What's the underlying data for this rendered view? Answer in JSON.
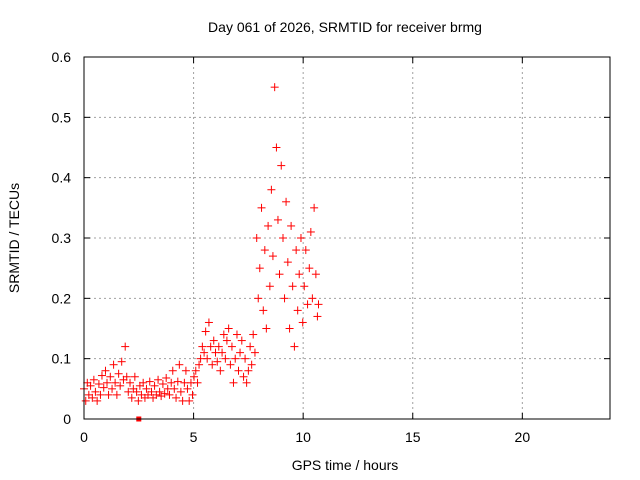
{
  "chart_data": {
    "type": "scatter",
    "title": "Day 061 of 2026, SRMTID for receiver brmg",
    "xlabel": "GPS time / hours",
    "ylabel": "SRMTID / TECUs",
    "xlim": [
      0,
      24
    ],
    "ylim": [
      0,
      0.6
    ],
    "xticks": [
      0,
      5,
      10,
      15,
      20
    ],
    "yticks": [
      0,
      0.1,
      0.2,
      0.3,
      0.4,
      0.5,
      0.6
    ],
    "grid": true,
    "marker": "+",
    "series_color": "#ff0000",
    "x_outlier_marker": {
      "x": 2.5,
      "y": 0
    },
    "points": [
      [
        0.0,
        0.05
      ],
      [
        0.08,
        0.03
      ],
      [
        0.15,
        0.06
      ],
      [
        0.22,
        0.04
      ],
      [
        0.3,
        0.055
      ],
      [
        0.38,
        0.035
      ],
      [
        0.45,
        0.065
      ],
      [
        0.52,
        0.045
      ],
      [
        0.6,
        0.03
      ],
      [
        0.68,
        0.058
      ],
      [
        0.75,
        0.04
      ],
      [
        0.82,
        0.072
      ],
      [
        0.9,
        0.052
      ],
      [
        0.98,
        0.08
      ],
      [
        1.05,
        0.06
      ],
      [
        1.12,
        0.04
      ],
      [
        1.2,
        0.07
      ],
      [
        1.28,
        0.05
      ],
      [
        1.35,
        0.09
      ],
      [
        1.42,
        0.06
      ],
      [
        1.5,
        0.04
      ],
      [
        1.58,
        0.075
      ],
      [
        1.65,
        0.055
      ],
      [
        1.72,
        0.095
      ],
      [
        1.8,
        0.065
      ],
      [
        1.88,
        0.12
      ],
      [
        1.95,
        0.07
      ],
      [
        2.02,
        0.045
      ],
      [
        2.1,
        0.06
      ],
      [
        2.18,
        0.035
      ],
      [
        2.25,
        0.05
      ],
      [
        2.32,
        0.07
      ],
      [
        2.4,
        0.045
      ],
      [
        2.48,
        0.03
      ],
      [
        2.55,
        0.055
      ],
      [
        2.62,
        0.04
      ],
      [
        2.7,
        0.06
      ],
      [
        2.78,
        0.035
      ],
      [
        2.85,
        0.05
      ],
      [
        2.92,
        0.04
      ],
      [
        3.0,
        0.062
      ],
      [
        3.08,
        0.045
      ],
      [
        3.15,
        0.035
      ],
      [
        3.22,
        0.055
      ],
      [
        3.3,
        0.04
      ],
      [
        3.38,
        0.065
      ],
      [
        3.45,
        0.045
      ],
      [
        3.52,
        0.038
      ],
      [
        3.6,
        0.058
      ],
      [
        3.68,
        0.042
      ],
      [
        3.75,
        0.068
      ],
      [
        3.82,
        0.05
      ],
      [
        3.9,
        0.04
      ],
      [
        3.98,
        0.06
      ],
      [
        4.05,
        0.08
      ],
      [
        4.12,
        0.05
      ],
      [
        4.2,
        0.035
      ],
      [
        4.28,
        0.062
      ],
      [
        4.35,
        0.09
      ],
      [
        4.42,
        0.045
      ],
      [
        4.5,
        0.03
      ],
      [
        4.58,
        0.06
      ],
      [
        4.65,
        0.08
      ],
      [
        4.72,
        0.05
      ],
      [
        4.8,
        0.03
      ],
      [
        4.88,
        0.06
      ],
      [
        4.95,
        0.04
      ],
      [
        5.02,
        0.07
      ],
      [
        5.1,
        0.08
      ],
      [
        5.18,
        0.06
      ],
      [
        5.25,
        0.09
      ],
      [
        5.32,
        0.1
      ],
      [
        5.4,
        0.12
      ],
      [
        5.48,
        0.11
      ],
      [
        5.55,
        0.145
      ],
      [
        5.62,
        0.1
      ],
      [
        5.7,
        0.16
      ],
      [
        5.78,
        0.12
      ],
      [
        5.85,
        0.09
      ],
      [
        5.92,
        0.13
      ],
      [
        6.0,
        0.11
      ],
      [
        6.08,
        0.095
      ],
      [
        6.15,
        0.12
      ],
      [
        6.22,
        0.08
      ],
      [
        6.3,
        0.11
      ],
      [
        6.38,
        0.14
      ],
      [
        6.45,
        0.1
      ],
      [
        6.52,
        0.13
      ],
      [
        6.6,
        0.15
      ],
      [
        6.68,
        0.09
      ],
      [
        6.75,
        0.12
      ],
      [
        6.82,
        0.06
      ],
      [
        6.9,
        0.1
      ],
      [
        6.98,
        0.14
      ],
      [
        7.05,
        0.08
      ],
      [
        7.12,
        0.11
      ],
      [
        7.2,
        0.13
      ],
      [
        7.28,
        0.07
      ],
      [
        7.35,
        0.1
      ],
      [
        7.42,
        0.06
      ],
      [
        7.5,
        0.08
      ],
      [
        7.58,
        0.12
      ],
      [
        7.65,
        0.09
      ],
      [
        7.72,
        0.14
      ],
      [
        7.8,
        0.11
      ],
      [
        7.88,
        0.3
      ],
      [
        7.95,
        0.2
      ],
      [
        8.02,
        0.25
      ],
      [
        8.1,
        0.35
      ],
      [
        8.18,
        0.18
      ],
      [
        8.25,
        0.28
      ],
      [
        8.32,
        0.15
      ],
      [
        8.4,
        0.32
      ],
      [
        8.48,
        0.22
      ],
      [
        8.55,
        0.38
      ],
      [
        8.62,
        0.27
      ],
      [
        8.7,
        0.55
      ],
      [
        8.78,
        0.45
      ],
      [
        8.85,
        0.33
      ],
      [
        8.92,
        0.24
      ],
      [
        9.0,
        0.42
      ],
      [
        9.08,
        0.3
      ],
      [
        9.15,
        0.2
      ],
      [
        9.22,
        0.36
      ],
      [
        9.3,
        0.26
      ],
      [
        9.38,
        0.15
      ],
      [
        9.45,
        0.32
      ],
      [
        9.52,
        0.22
      ],
      [
        9.6,
        0.12
      ],
      [
        9.68,
        0.28
      ],
      [
        9.75,
        0.18
      ],
      [
        9.82,
        0.24
      ],
      [
        9.9,
        0.3
      ],
      [
        9.98,
        0.16
      ],
      [
        10.05,
        0.22
      ],
      [
        10.12,
        0.28
      ],
      [
        10.2,
        0.19
      ],
      [
        10.28,
        0.25
      ],
      [
        10.35,
        0.31
      ],
      [
        10.42,
        0.2
      ],
      [
        10.5,
        0.35
      ],
      [
        10.58,
        0.24
      ],
      [
        10.65,
        0.17
      ],
      [
        10.7,
        0.19
      ]
    ]
  }
}
